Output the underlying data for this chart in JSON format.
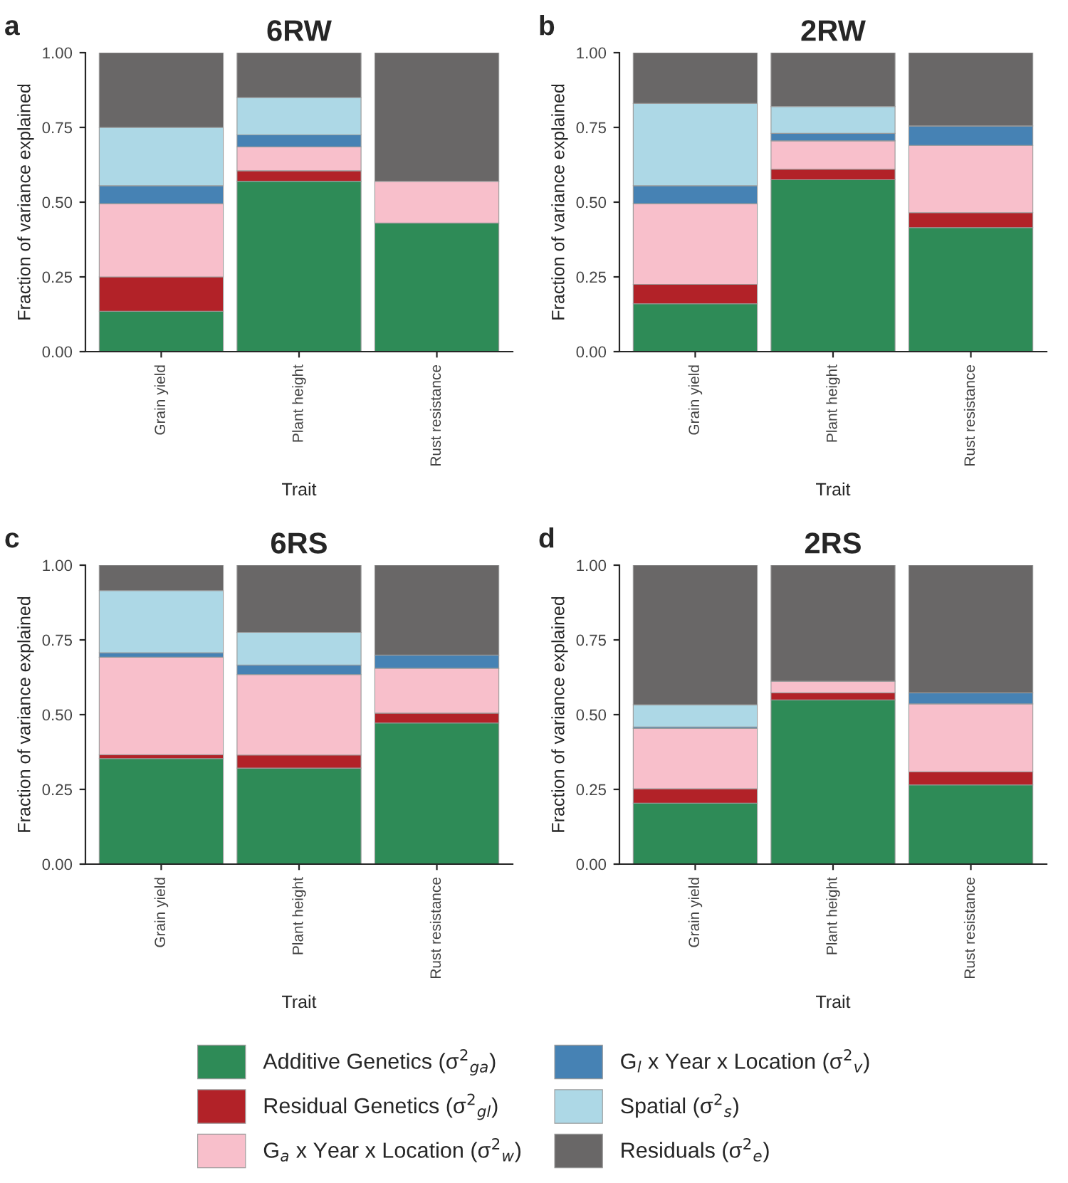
{
  "chart_data": [
    {
      "type": "bar",
      "title": "6RW",
      "annotations": [
        "a"
      ],
      "xlabel": "Trait",
      "ylabel": "Fraction of variance explained",
      "stacked": true,
      "categories": [
        "Grain yield",
        "Plant height",
        "Rust resistance"
      ],
      "ylim": [
        0,
        1
      ],
      "yticks": [
        {
          "value": 0,
          "label": "0.00"
        },
        {
          "value": 0.25,
          "label": "0.25"
        },
        {
          "value": 0.5,
          "label": "0.50"
        },
        {
          "value": 0.75,
          "label": "0.75"
        },
        {
          "value": 1,
          "label": "1.00"
        }
      ],
      "grid": false,
      "legend": false,
      "series": [
        {
          "color": "#2e8b57",
          "values": [
            0.135,
            0.57,
            0.43
          ]
        },
        {
          "color": "#b22228",
          "values": [
            0.115,
            0.035,
            0
          ]
        },
        {
          "color": "#f8bfcb",
          "values": [
            0.245,
            0.08,
            0.14
          ]
        },
        {
          "color": "#4682b4",
          "values": [
            0.06,
            0.04,
            0
          ]
        },
        {
          "color": "#add8e6",
          "values": [
            0.195,
            0.125,
            0
          ]
        },
        {
          "color": "#696767",
          "values": [
            0.25,
            0.15,
            0.43
          ]
        }
      ]
    },
    {
      "type": "bar",
      "title": "2RW",
      "annotations": [
        "b"
      ],
      "xlabel": "Trait",
      "ylabel": "Fraction of variance explained",
      "stacked": true,
      "categories": [
        "Grain yield",
        "Plant height",
        "Rust resistance"
      ],
      "ylim": [
        0,
        1
      ],
      "yticks": [
        {
          "value": 0,
          "label": "0.00"
        },
        {
          "value": 0.25,
          "label": "0.25"
        },
        {
          "value": 0.5,
          "label": "0.50"
        },
        {
          "value": 0.75,
          "label": "0.75"
        },
        {
          "value": 1,
          "label": "1.00"
        }
      ],
      "grid": false,
      "legend": false,
      "series": [
        {
          "color": "#2e8b57",
          "values": [
            0.16,
            0.575,
            0.415
          ]
        },
        {
          "color": "#b22228",
          "values": [
            0.065,
            0.035,
            0.05
          ]
        },
        {
          "color": "#f8bfcb",
          "values": [
            0.27,
            0.095,
            0.225
          ]
        },
        {
          "color": "#4682b4",
          "values": [
            0.06,
            0.025,
            0.065
          ]
        },
        {
          "color": "#add8e6",
          "values": [
            0.275,
            0.09,
            0
          ]
        },
        {
          "color": "#696767",
          "values": [
            0.17,
            0.18,
            0.245
          ]
        }
      ]
    },
    {
      "type": "bar",
      "title": "6RS",
      "annotations": [
        "c"
      ],
      "xlabel": "Trait",
      "ylabel": "Fraction of variance explained",
      "stacked": true,
      "categories": [
        "Grain yield",
        "Plant height",
        "Rust resistance"
      ],
      "ylim": [
        0,
        1
      ],
      "yticks": [
        {
          "value": 0,
          "label": "0.00"
        },
        {
          "value": 0.25,
          "label": "0.25"
        },
        {
          "value": 0.5,
          "label": "0.50"
        },
        {
          "value": 0.75,
          "label": "0.75"
        },
        {
          "value": 1,
          "label": "1.00"
        }
      ],
      "grid": false,
      "legend": false,
      "series": [
        {
          "color": "#2e8b57",
          "values": [
            0.353,
            0.321,
            0.472
          ]
        },
        {
          "color": "#b22228",
          "values": [
            0.013,
            0.044,
            0.033
          ]
        },
        {
          "color": "#f8bfcb",
          "values": [
            0.326,
            0.269,
            0.15
          ]
        },
        {
          "color": "#4682b4",
          "values": [
            0.015,
            0.032,
            0.044
          ]
        },
        {
          "color": "#add8e6",
          "values": [
            0.208,
            0.109,
            0
          ]
        },
        {
          "color": "#696767",
          "values": [
            0.085,
            0.225,
            0.301
          ]
        }
      ]
    },
    {
      "type": "bar",
      "title": "2RS",
      "annotations": [
        "d"
      ],
      "xlabel": "Trait",
      "ylabel": "Fraction of variance explained",
      "stacked": true,
      "categories": [
        "Grain yield",
        "Plant height",
        "Rust resistance"
      ],
      "ylim": [
        0,
        1
      ],
      "yticks": [
        {
          "value": 0,
          "label": "0.00"
        },
        {
          "value": 0.25,
          "label": "0.25"
        },
        {
          "value": 0.5,
          "label": "0.50"
        },
        {
          "value": 0.75,
          "label": "0.75"
        },
        {
          "value": 1,
          "label": "1.00"
        }
      ],
      "grid": false,
      "legend": "bottom",
      "series": [
        {
          "name": "Additive Genetics (σ$^{2}$$_{ga}$)",
          "color": "#2e8b57",
          "values": [
            0.204,
            0.549,
            0.265
          ]
        },
        {
          "name": "Residual Genetics (σ$^{2}$$_{gl}$)",
          "color": "#b22228",
          "values": [
            0.048,
            0.024,
            0.044
          ]
        },
        {
          "name": "G$_{a}$ x Year x Location (σ$^{2}$$_{w}$)",
          "color": "#f8bfcb",
          "values": [
            0.202,
            0.039,
            0.227
          ]
        },
        {
          "name": "G$_{l}$ x Year x Location (σ$^{2}$$_{v}$)",
          "color": "#4682b4",
          "values": [
            0.005,
            0,
            0.037
          ]
        },
        {
          "name": "Spatial (σ$^{2}$$_{s}$)",
          "color": "#add8e6",
          "values": [
            0.074,
            0,
            0
          ]
        },
        {
          "name": "Residuals (σ$^{2}$$_{e}$)",
          "color": "#696767",
          "values": [
            0.467,
            0.388,
            0.427
          ]
        }
      ]
    }
  ]
}
